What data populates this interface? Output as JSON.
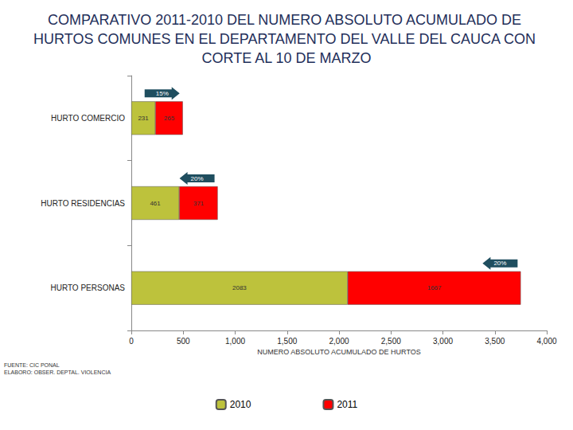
{
  "chart_data": {
    "type": "bar",
    "title": "COMPARATIVO 2011-2010 DEL NUMERO ABSOLUTO ACUMULADO DE HURTOS COMUNES EN EL DEPARTAMENTO DEL VALLE DEL CAUCA CON CORTE AL 10 DE MARZO",
    "x_label": "NUMERO ABSOLUTO ACUMULADO DE HURTOS",
    "categories": [
      "HURTO COMERCIO",
      "HURTO RESIDENCIAS",
      "HURTO PERSONAS"
    ],
    "series": [
      {
        "name": "2010",
        "color": "#bdc23c",
        "values": [
          231,
          461,
          2083
        ]
      },
      {
        "name": "2011",
        "color": "#ff0000",
        "values": [
          265,
          371,
          1667
        ]
      }
    ],
    "orientation": "horizontal",
    "stacked": true,
    "data_labels": true,
    "grid": false,
    "legend": "bottom",
    "xlim": [
      0,
      4000
    ],
    "xticks": [
      0,
      500,
      1000,
      1500,
      2000,
      2500,
      3000,
      3500,
      4000
    ],
    "annotations": [
      {
        "category": "HURTO COMERCIO",
        "text": "15%"
      },
      {
        "category": "HURTO RESIDENCIAS",
        "text": "20%"
      },
      {
        "category": "HURTO PERSONAS",
        "text": "20%"
      }
    ],
    "source": [
      "FUENTE: CIC PONAL",
      "ELABORO: OBSER. DEPTAL. VIOLENCIA"
    ]
  }
}
